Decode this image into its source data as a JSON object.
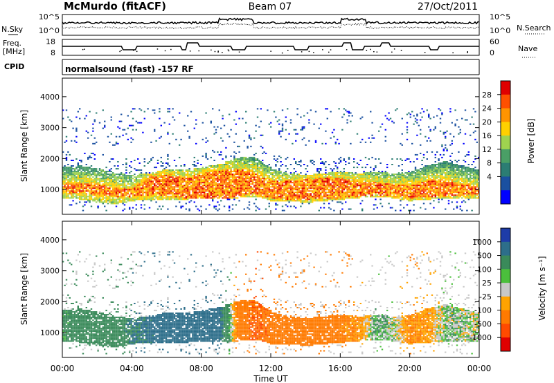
{
  "header": {
    "station": "McMurdo (fitACF)",
    "beam": "Beam 07",
    "date": "27/Oct/2011"
  },
  "noise_panel": {
    "left_label": "N.Sky",
    "right_label": "N.Search",
    "ticks_left": [
      "10^5",
      "10^0"
    ],
    "ticks_right": [
      "10^5",
      "10^0"
    ]
  },
  "freq_panel": {
    "left_label_line1": "Freq.",
    "left_label_line2": "[MHz]",
    "right_label": "Nave",
    "ticks_left": [
      "18",
      "8"
    ],
    "ticks_right": [
      "60",
      "0"
    ]
  },
  "cpid": {
    "label": "CPID",
    "value": "normalsound (fast) -157 RF"
  },
  "power_colorbar": {
    "label": "Power [dB]",
    "ticks": [
      "28",
      "24",
      "20",
      "16",
      "12",
      "8",
      "4"
    ],
    "colors": [
      "#e00000",
      "#ff5000",
      "#ff9400",
      "#ffd000",
      "#9fd34f",
      "#4a9f66",
      "#2b7d73",
      "#1a50a0",
      "#0000ff"
    ]
  },
  "velocity_colorbar": {
    "label": "Velocity [m s⁻¹]",
    "ticks": [
      "1000",
      "500",
      "100",
      "25",
      "-25",
      "-100",
      "-500",
      "-1000"
    ],
    "colors": [
      "#1e3ca8",
      "#2d6e8a",
      "#3a8a5a",
      "#4bbf3c",
      "#c8c8c8",
      "#ffa300",
      "#ff7a00",
      "#ff4a00",
      "#e00000"
    ]
  },
  "chart_data": [
    {
      "type": "heatmap",
      "name": "power",
      "ylabel": "Slant Range [km]",
      "ylim": [
        200,
        4600
      ],
      "xlim": [
        0,
        24
      ],
      "yticks": [
        1000,
        2000,
        3000,
        4000
      ],
      "band_upper_km": [
        1700,
        1750,
        1650,
        1500,
        1450,
        1500,
        1650,
        1600,
        1700,
        1800,
        2000,
        2050,
        1650,
        1500,
        1450,
        1500,
        1550,
        1500,
        1550,
        1500,
        1550,
        1750,
        1900,
        1750,
        1600
      ],
      "band_lower_km": [
        700,
        650,
        550,
        500,
        600,
        650,
        650,
        650,
        700,
        700,
        700,
        750,
        600,
        600,
        550,
        600,
        650,
        700,
        750,
        700,
        600,
        650,
        700,
        700,
        700
      ],
      "core_upper_km": [
        1150,
        1200,
        1150,
        1050,
        1000,
        1400,
        1450,
        1350,
        1500,
        1600,
        1650,
        1550,
        1250,
        1250,
        1300,
        1350,
        1350,
        1250,
        1200,
        1150,
        1100,
        1250,
        1300,
        1150,
        1050
      ],
      "core_lower_km": [
        900,
        850,
        800,
        750,
        750,
        800,
        750,
        700,
        700,
        650,
        750,
        850,
        700,
        650,
        650,
        700,
        700,
        750,
        800,
        750,
        700,
        750,
        750,
        800,
        800
      ],
      "peak_power_db": 30
    },
    {
      "type": "heatmap",
      "name": "velocity",
      "ylabel": "Slant Range [km]",
      "ylim": [
        200,
        4600
      ],
      "xlim": [
        0,
        24
      ],
      "xticks": [
        "00:00",
        "04:00",
        "08:00",
        "12:00",
        "16:00",
        "20:00",
        "00:00"
      ],
      "xlabel": "Time UT",
      "yticks": [
        1000,
        2000,
        3000,
        4000
      ],
      "band_upper_km": [
        1700,
        1750,
        1650,
        1500,
        1450,
        1500,
        1650,
        1600,
        1700,
        1800,
        2000,
        2050,
        1650,
        1500,
        1450,
        1500,
        1550,
        1500,
        1550,
        1500,
        1550,
        1750,
        1900,
        1750,
        1600
      ],
      "band_lower_km": [
        700,
        650,
        550,
        500,
        600,
        650,
        650,
        650,
        700,
        700,
        700,
        750,
        600,
        600,
        550,
        600,
        650,
        700,
        750,
        700,
        600,
        650,
        700,
        700,
        700
      ],
      "dominant_velocity_by_hour_ms": [
        100,
        150,
        200,
        180,
        300,
        350,
        400,
        420,
        400,
        380,
        -150,
        -300,
        -250,
        -200,
        -180,
        -200,
        -150,
        -100,
        60,
        20,
        -120,
        -80,
        30,
        20,
        10
      ]
    }
  ]
}
